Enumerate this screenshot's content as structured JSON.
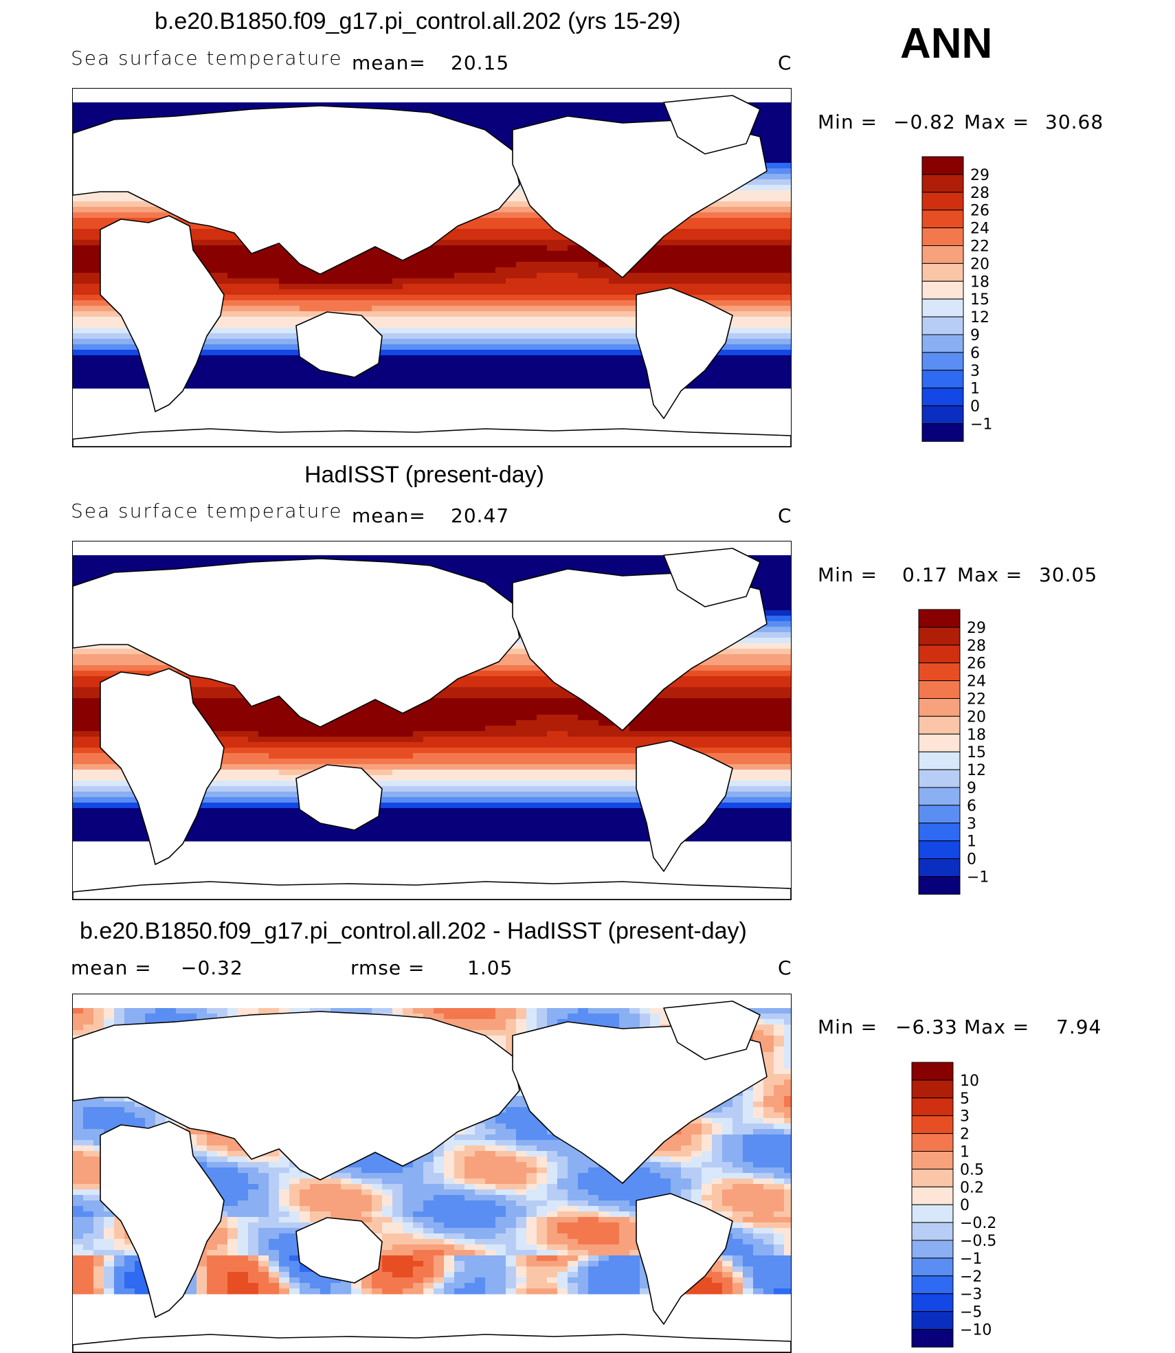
{
  "season": "ANN",
  "panels": [
    {
      "title": "b.e20.B1850.f09_g17.pi_control.all.202 (yrs 15-29)",
      "variable": "Sea surface temperature",
      "mean_label": "mean=",
      "mean_value": "20.15",
      "units": "C",
      "min_label": "Min =",
      "min_value": "−0.82",
      "max_label": "Max =",
      "max_value": "30.68",
      "colorbar_ticks": [
        "29",
        "28",
        "26",
        "24",
        "22",
        "20",
        "18",
        "15",
        "12",
        "9",
        "6",
        "3",
        "1",
        "0",
        "−1"
      ]
    },
    {
      "title": "HadISST (present-day)",
      "variable": "Sea surface temperature",
      "mean_label": "mean=",
      "mean_value": "20.47",
      "units": "C",
      "min_label": "Min =",
      "min_value": "0.17",
      "max_label": "Max =",
      "max_value": "30.05",
      "colorbar_ticks": [
        "29",
        "28",
        "26",
        "24",
        "22",
        "20",
        "18",
        "15",
        "12",
        "9",
        "6",
        "3",
        "1",
        "0",
        "−1"
      ]
    },
    {
      "title": "b.e20.B1850.f09_g17.pi_control.all.202 - HadISST (present-day)",
      "mean_label": "mean =",
      "mean_value": "−0.32",
      "rmse_label": "rmse =",
      "rmse_value": "1.05",
      "units": "C",
      "min_label": "Min =",
      "min_value": "−6.33",
      "max_label": "Max =",
      "max_value": "7.94",
      "colorbar_ticks": [
        "10",
        "5",
        "3",
        "2",
        "1",
        "0.5",
        "0.2",
        "0",
        "−0.2",
        "−0.5",
        "−1",
        "−2",
        "−3",
        "−5",
        "−10"
      ]
    }
  ],
  "colors": {
    "sst_scale": [
      "#08007a",
      "#0a2ec0",
      "#1347e6",
      "#2e6af2",
      "#5a8ef2",
      "#8aaff2",
      "#b8cdf5",
      "#d8e8fa",
      "#fde6d8",
      "#fbc6a8",
      "#f7a27c",
      "#f4784e",
      "#e84e24",
      "#d0300f",
      "#b01e08",
      "#880000"
    ],
    "diff_scale": [
      "#08007a",
      "#0a2ec0",
      "#1347e6",
      "#2e6af2",
      "#5a8ef2",
      "#8aaff2",
      "#b8cdf5",
      "#d8e8fa",
      "#fde6d8",
      "#fbc6a8",
      "#f7a27c",
      "#f4784e",
      "#e84e24",
      "#d0300f",
      "#b01e08",
      "#880000"
    ]
  },
  "chart_data": [
    {
      "type": "heatmap",
      "title": "b.e20.B1850.f09_g17.pi_control.all.202 (yrs 15-29)",
      "variable": "Sea surface temperature",
      "units": "C",
      "mean": 20.15,
      "min": -0.82,
      "max": 30.68,
      "levels": [
        -1,
        0,
        1,
        3,
        6,
        9,
        12,
        15,
        18,
        20,
        22,
        24,
        26,
        28,
        29
      ]
    },
    {
      "type": "heatmap",
      "title": "HadISST (present-day)",
      "variable": "Sea surface temperature",
      "units": "C",
      "mean": 20.47,
      "min": 0.17,
      "max": 30.05,
      "levels": [
        -1,
        0,
        1,
        3,
        6,
        9,
        12,
        15,
        18,
        20,
        22,
        24,
        26,
        28,
        29
      ]
    },
    {
      "type": "heatmap",
      "title": "b.e20.B1850.f09_g17.pi_control.all.202 - HadISST (present-day)",
      "units": "C",
      "mean": -0.32,
      "rmse": 1.05,
      "min": -6.33,
      "max": 7.94,
      "levels": [
        -10,
        -5,
        -3,
        -2,
        -1,
        -0.5,
        -0.2,
        0,
        0.2,
        0.5,
        1,
        2,
        3,
        5,
        10
      ]
    }
  ]
}
